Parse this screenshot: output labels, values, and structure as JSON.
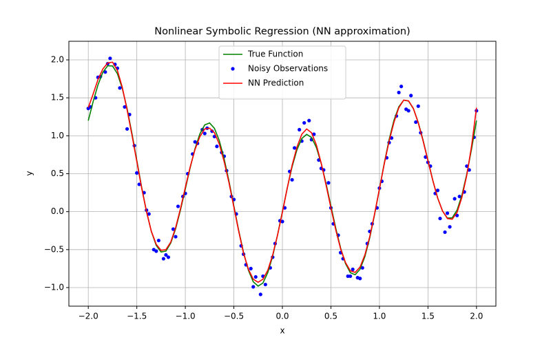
{
  "chart_data": {
    "type": "line",
    "title": "Nonlinear Symbolic Regression (NN approximation)",
    "xlabel": "x",
    "ylabel": "y",
    "xlim": [
      -2.2,
      2.2
    ],
    "ylim": [
      -1.245,
      2.245
    ],
    "xticks": [
      {
        "value": -2,
        "label": "−2.0"
      },
      {
        "value": -1.5,
        "label": "−1.5"
      },
      {
        "value": -1,
        "label": "−1.0"
      },
      {
        "value": -0.5,
        "label": "−0.5"
      },
      {
        "value": 0,
        "label": "0.0"
      },
      {
        "value": 0.5,
        "label": "0.5"
      },
      {
        "value": 1,
        "label": "1.0"
      },
      {
        "value": 1.5,
        "label": "1.5"
      },
      {
        "value": 2,
        "label": "2.0"
      }
    ],
    "yticks": [
      {
        "value": -1,
        "label": "−1.0"
      },
      {
        "value": -0.5,
        "label": "−0.5"
      },
      {
        "value": 0,
        "label": "0.0"
      },
      {
        "value": 0.5,
        "label": "0.5"
      },
      {
        "value": 1,
        "label": "1.0"
      },
      {
        "value": 1.5,
        "label": "1.5"
      },
      {
        "value": 2,
        "label": "2.0"
      }
    ],
    "grid": true,
    "legend": "upper center",
    "series": [
      {
        "name": "True Function",
        "kind": "line",
        "color": "#008000",
        "x": [
          -2,
          -1.95,
          -1.9,
          -1.85,
          -1.8,
          -1.75,
          -1.7,
          -1.65,
          -1.6,
          -1.55,
          -1.5,
          -1.45,
          -1.4,
          -1.35,
          -1.3,
          -1.25,
          -1.2,
          -1.15,
          -1.1,
          -1.05,
          -1,
          -0.95,
          -0.9,
          -0.85,
          -0.8,
          -0.75,
          -0.7,
          -0.65,
          -0.6,
          -0.55,
          -0.5,
          -0.45,
          -0.4,
          -0.35,
          -0.3,
          -0.25,
          -0.2,
          -0.15,
          -0.1,
          -0.05,
          0,
          0.05,
          0.1,
          0.15,
          0.2,
          0.25,
          0.3,
          0.35,
          0.4,
          0.45,
          0.5,
          0.55,
          0.6,
          0.65,
          0.7,
          0.75,
          0.8,
          0.85,
          0.9,
          0.95,
          1,
          1.05,
          1.1,
          1.15,
          1.2,
          1.25,
          1.3,
          1.35,
          1.4,
          1.45,
          1.5,
          1.55,
          1.6,
          1.65,
          1.7,
          1.75,
          1.8,
          1.85,
          1.9,
          1.95,
          2
        ],
        "values": [
          1.2,
          1.45,
          1.671,
          1.836,
          1.923,
          1.919,
          1.818,
          1.626,
          1.356,
          1.03,
          0.675,
          0.322,
          0,
          -0.262,
          -0.444,
          -0.531,
          -0.519,
          -0.412,
          -0.225,
          0.022,
          0.3,
          0.58,
          0.831,
          1.026,
          1.143,
          1.169,
          1.098,
          0.936,
          0.696,
          0.4,
          0.075,
          -0.248,
          -0.54,
          -0.772,
          -0.924,
          -0.981,
          -0.939,
          -0.802,
          -0.585,
          -0.308,
          0,
          0.31,
          0.591,
          0.816,
          0.963,
          1.019,
          0.978,
          0.846,
          0.636,
          0.37,
          0.075,
          -0.218,
          -0.48,
          -0.682,
          -0.804,
          -0.831,
          -0.759,
          -0.592,
          -0.345,
          -0.038,
          0.3,
          0.64,
          0.951,
          1.206,
          1.383,
          1.469,
          1.458,
          1.356,
          1.176,
          0.94,
          0.675,
          0.412,
          0.18,
          0.008,
          -0.084,
          -0.081,
          0.021,
          0.218,
          0.495,
          0.832,
          1.2
        ]
      },
      {
        "name": "Noisy Observations",
        "kind": "scatter",
        "color": "#0000ff",
        "x": [
          -1.975,
          -1.925,
          -1.875,
          -1.825,
          -1.775,
          -1.725,
          -1.675,
          -1.625,
          -1.575,
          -1.525,
          -1.475,
          -1.425,
          -1.375,
          -1.325,
          -1.275,
          -1.225,
          -1.175,
          -1.125,
          -1.075,
          -1.025,
          -0.975,
          -0.925,
          -0.875,
          -0.825,
          -0.775,
          -0.725,
          -0.675,
          -0.625,
          -0.575,
          -0.525,
          -0.475,
          -0.425,
          -0.375,
          -0.325,
          -0.275,
          -0.225,
          -0.175,
          -0.125,
          -0.075,
          -0.025,
          0.025,
          0.075,
          0.125,
          0.175,
          0.225,
          0.275,
          0.325,
          0.375,
          0.425,
          0.475,
          0.525,
          0.575,
          0.625,
          0.675,
          0.725,
          0.775,
          0.825,
          0.875,
          0.925,
          0.975,
          1.025,
          1.075,
          1.125,
          1.175,
          1.225,
          1.275,
          1.325,
          1.375,
          1.425,
          1.475,
          1.525,
          1.575,
          1.625,
          1.675,
          1.725,
          1.775,
          1.825,
          1.875,
          1.925,
          1.975,
          -2,
          -1.9,
          -1.8,
          -1.7,
          -1.6,
          -1.5,
          -1.4,
          -1.3,
          -1.2,
          -1.1,
          -1,
          -0.9,
          -0.8,
          -0.7,
          -0.6,
          -0.5,
          -0.4,
          -0.3,
          -0.2,
          -0.1,
          0,
          0.1,
          0.2,
          0.3,
          0.4,
          0.5,
          0.6,
          0.7,
          0.8,
          0.9,
          1,
          1.1,
          1.2,
          1.3,
          1.4,
          1.5,
          1.6,
          1.7,
          1.8,
          1.9,
          2
        ],
        "values": [
          1.38,
          1.5,
          1.78,
          1.84,
          2.02,
          1.94,
          1.63,
          1.38,
          1.28,
          0.87,
          0.36,
          0.25,
          -0.03,
          -0.5,
          -0.38,
          -0.62,
          -0.6,
          -0.23,
          0.07,
          0.2,
          0.5,
          0.76,
          0.9,
          1.08,
          1.1,
          1.06,
          0.86,
          0.78,
          0.54,
          0.2,
          -0.03,
          -0.45,
          -0.7,
          -0.75,
          -0.86,
          -1.09,
          -0.96,
          -0.74,
          -0.42,
          -0.12,
          0.05,
          0.53,
          0.84,
          1.08,
          1.17,
          1.2,
          1.02,
          0.68,
          0.55,
          0.38,
          -0.16,
          -0.31,
          -0.62,
          -0.85,
          -0.76,
          -0.87,
          -0.74,
          -0.42,
          -0.16,
          0.05,
          0.4,
          0.71,
          0.97,
          1.26,
          1.65,
          1.35,
          1.53,
          1.18,
          1.04,
          0.72,
          0.6,
          0.24,
          -0.09,
          -0.27,
          -0.2,
          0.17,
          0.2,
          0.26,
          0.55,
          0.98,
          1.36,
          1.77,
          1.95,
          1.89,
          1.09,
          0.51,
          0.02,
          -0.52,
          -0.57,
          -0.33,
          0.24,
          0.92,
          1.03,
          0.99,
          0.73,
          0.16,
          -0.56,
          -0.99,
          -0.85,
          -0.6,
          -0.13,
          0.42,
          0.93,
          0.95,
          0.57,
          0.05,
          -0.54,
          -0.85,
          -0.88,
          -0.26,
          0.31,
          0.91,
          1.57,
          1.33,
          1.39,
          0.65,
          0.28,
          -0.02,
          -0.05,
          0.6,
          1.33
        ]
      },
      {
        "name": "NN Prediction",
        "kind": "line",
        "color": "#ff0000",
        "x": [
          -2,
          -1.95,
          -1.9,
          -1.85,
          -1.8,
          -1.75,
          -1.7,
          -1.65,
          -1.6,
          -1.55,
          -1.5,
          -1.45,
          -1.4,
          -1.35,
          -1.3,
          -1.25,
          -1.2,
          -1.15,
          -1.1,
          -1.05,
          -1,
          -0.95,
          -0.9,
          -0.85,
          -0.8,
          -0.75,
          -0.7,
          -0.65,
          -0.6,
          -0.55,
          -0.5,
          -0.45,
          -0.4,
          -0.35,
          -0.3,
          -0.25,
          -0.2,
          -0.15,
          -0.1,
          -0.05,
          0,
          0.05,
          0.1,
          0.15,
          0.2,
          0.25,
          0.3,
          0.35,
          0.4,
          0.45,
          0.5,
          0.55,
          0.6,
          0.65,
          0.7,
          0.75,
          0.8,
          0.85,
          0.9,
          0.95,
          1,
          1.05,
          1.1,
          1.15,
          1.2,
          1.25,
          1.3,
          1.35,
          1.4,
          1.45,
          1.5,
          1.55,
          1.6,
          1.65,
          1.7,
          1.75,
          1.8,
          1.85,
          1.9,
          1.95,
          2
        ],
        "values": [
          1.37,
          1.55,
          1.74,
          1.88,
          1.96,
          1.97,
          1.86,
          1.64,
          1.34,
          1.01,
          0.66,
          0.31,
          0,
          -0.26,
          -0.43,
          -0.51,
          -0.5,
          -0.4,
          -0.21,
          0.04,
          0.32,
          0.59,
          0.82,
          0.99,
          1.09,
          1.1,
          1.04,
          0.89,
          0.66,
          0.38,
          0.06,
          -0.26,
          -0.55,
          -0.76,
          -0.89,
          -0.93,
          -0.89,
          -0.77,
          -0.57,
          -0.31,
          -0.01,
          0.31,
          0.61,
          0.85,
          1.02,
          1.09,
          1.04,
          0.88,
          0.64,
          0.35,
          0.05,
          -0.24,
          -0.49,
          -0.67,
          -0.78,
          -0.8,
          -0.73,
          -0.57,
          -0.33,
          -0.03,
          0.3,
          0.63,
          0.93,
          1.18,
          1.37,
          1.47,
          1.46,
          1.36,
          1.17,
          0.93,
          0.67,
          0.41,
          0.18,
          0.01,
          -0.09,
          -0.1,
          -0.01,
          0.19,
          0.48,
          0.87,
          1.37
        ]
      }
    ]
  }
}
